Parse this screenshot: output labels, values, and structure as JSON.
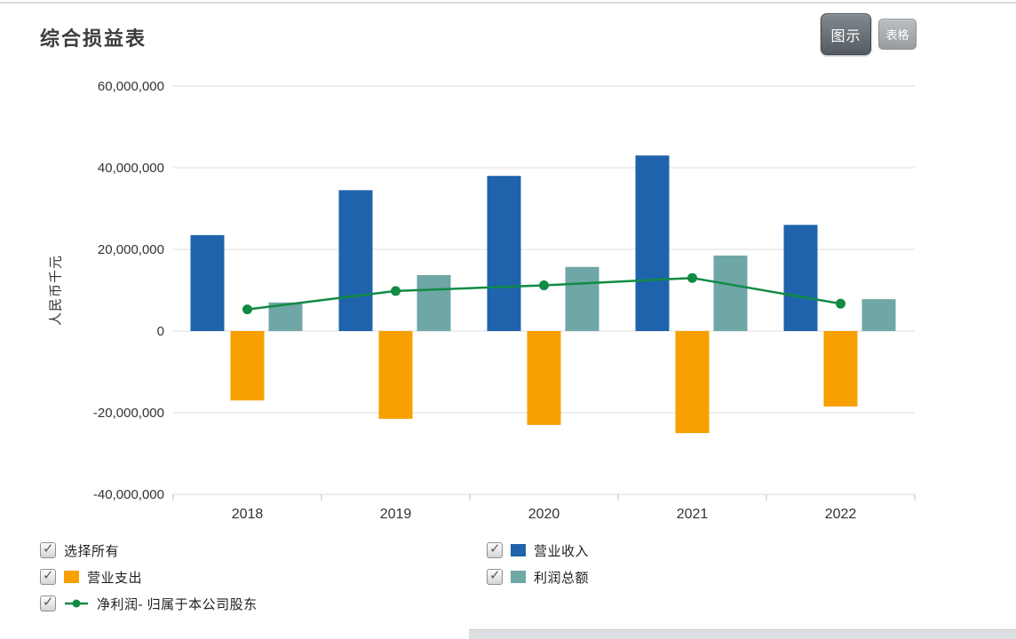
{
  "header": {
    "title": "综合损益表",
    "chart_button": "图示",
    "table_button": "表格"
  },
  "chart_data": {
    "type": "bar",
    "title": "综合损益表",
    "xlabel": "",
    "ylabel": "人民币千元",
    "categories": [
      "2018",
      "2019",
      "2020",
      "2021",
      "2022"
    ],
    "series": [
      {
        "key": "revenue",
        "name": "营业收入",
        "type": "bar",
        "color": "#1F63AD",
        "values": [
          23500000,
          34500000,
          38000000,
          43000000,
          26000000
        ]
      },
      {
        "key": "expenses",
        "name": "营业支出",
        "type": "bar",
        "color": "#F7A000",
        "values": [
          -17000000,
          -21500000,
          -23000000,
          -25000000,
          -18500000
        ]
      },
      {
        "key": "total-profit",
        "name": "利润总额",
        "type": "bar",
        "color": "#6FA6A6",
        "values": [
          7000000,
          13700000,
          15700000,
          18500000,
          7800000
        ]
      },
      {
        "key": "net-profit",
        "name": "净利润- 归属于本公司股东",
        "type": "line",
        "color": "#118A44",
        "values": [
          5300000,
          9800000,
          11200000,
          13000000,
          6700000
        ]
      }
    ],
    "ylim": [
      -40000000,
      60000000
    ],
    "yticks": [
      60000000,
      40000000,
      20000000,
      0,
      -20000000,
      -40000000
    ],
    "grid": true,
    "legend_position": "bottom"
  },
  "legend": {
    "select_all": {
      "label": "选择所有",
      "checked": true
    },
    "items": [
      {
        "label": "营业收入",
        "checked": true
      },
      {
        "label": "营业支出",
        "checked": true
      },
      {
        "label": "利润总额",
        "checked": true
      },
      {
        "label": "净利润-  归属于本公司股东",
        "checked": true
      }
    ]
  }
}
